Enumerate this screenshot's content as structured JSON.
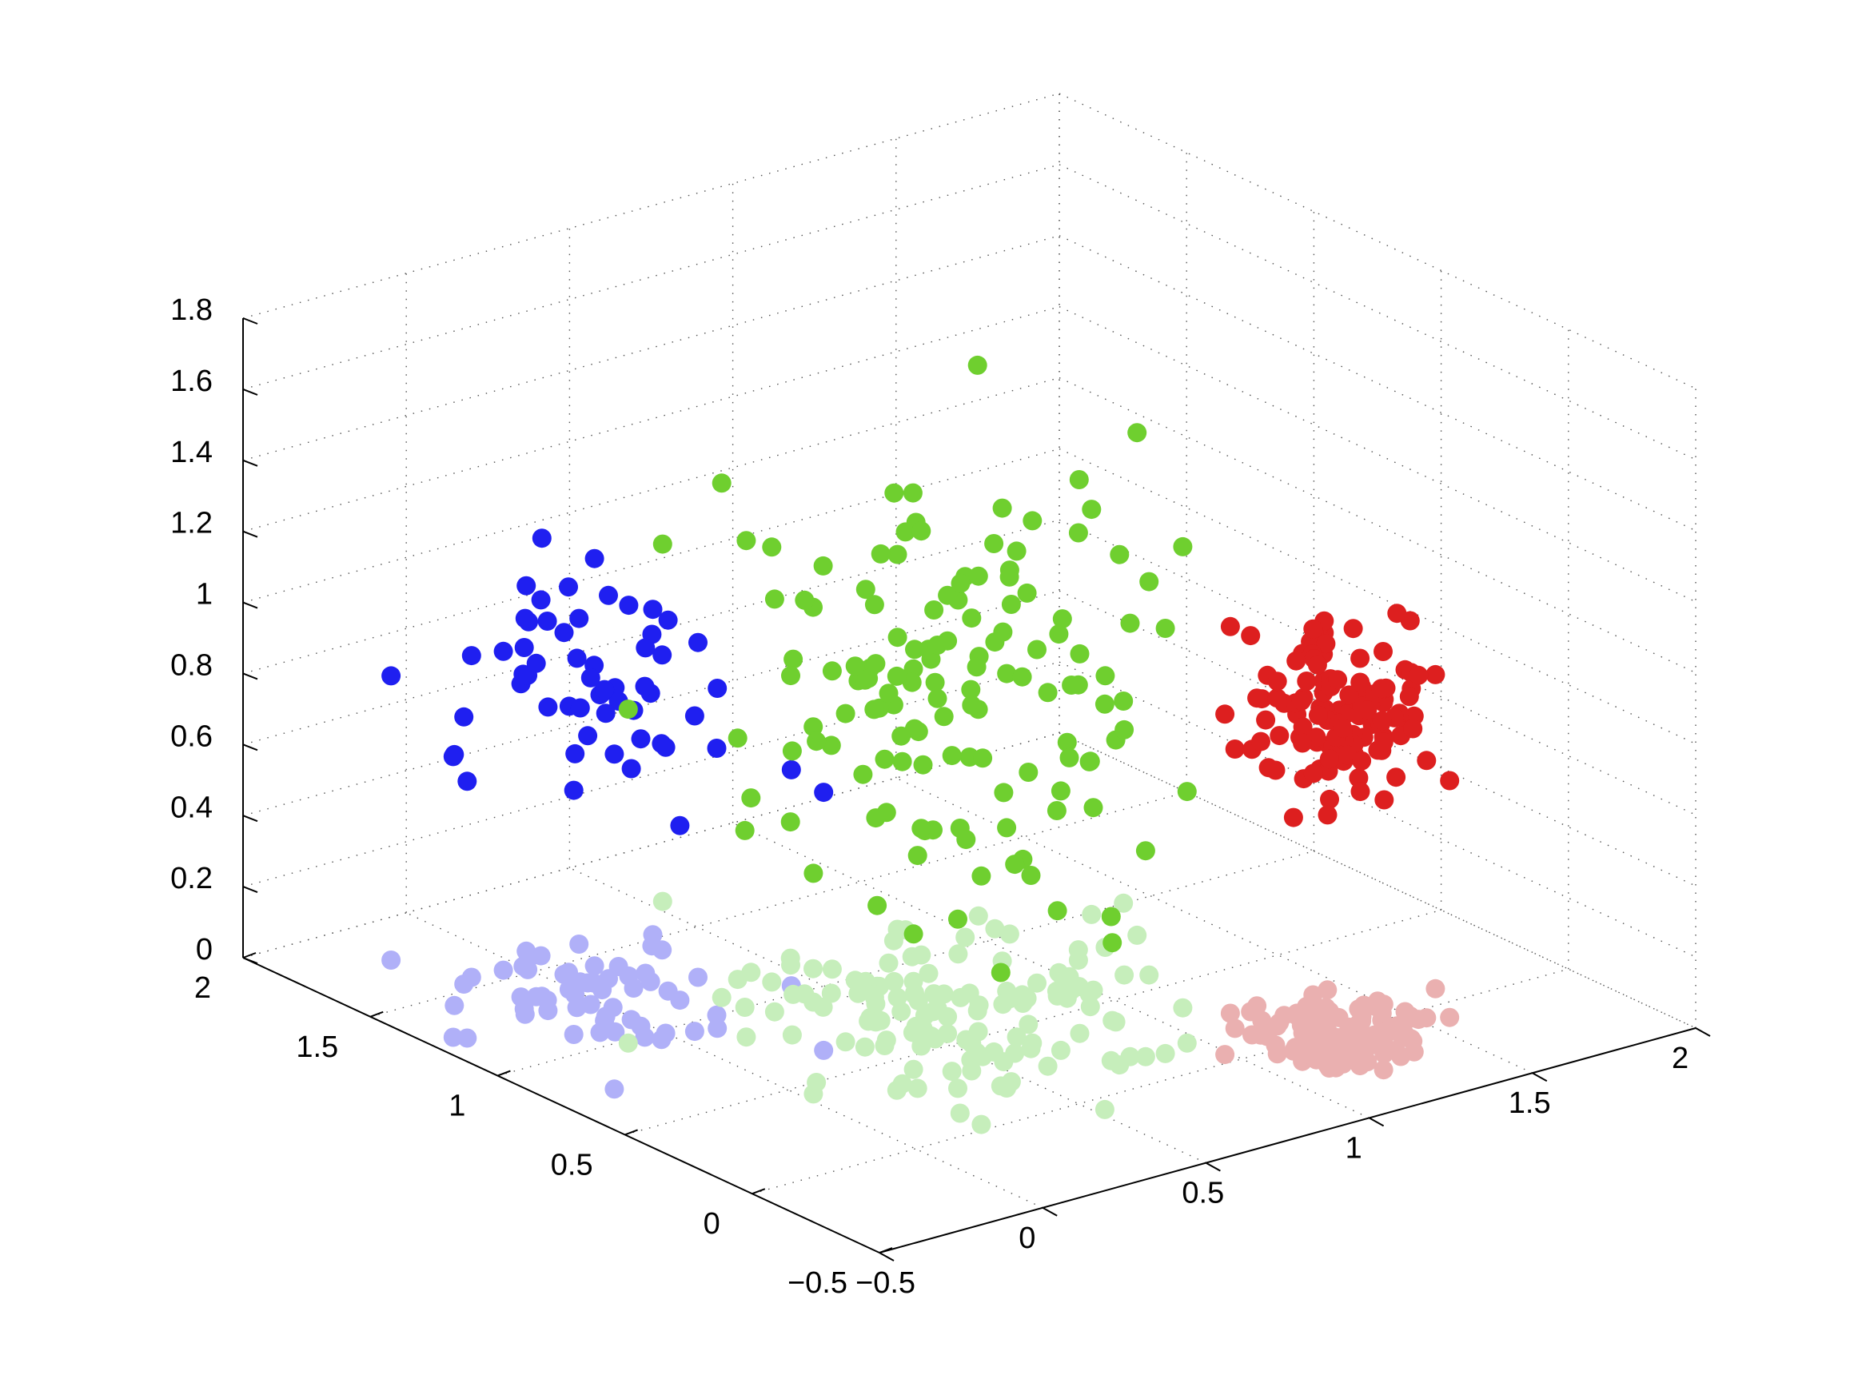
{
  "chart_data": {
    "type": "scatter3d",
    "title": "",
    "xlabel": "",
    "ylabel": "",
    "zlabel": "",
    "xlim": [
      -0.5,
      2
    ],
    "ylim": [
      -0.5,
      2
    ],
    "zlim": [
      0,
      1.8
    ],
    "x_ticks": [
      -0.5,
      0,
      0.5,
      1,
      1.5,
      2
    ],
    "x_tick_labels": [
      "−0.5",
      "0",
      "0.5",
      "1",
      "1.5",
      "2"
    ],
    "y_ticks": [
      -0.5,
      0,
      0.5,
      1,
      1.5,
      2
    ],
    "y_tick_labels": [
      "−0.5",
      "0",
      "0.5",
      "1",
      "1.5",
      "2"
    ],
    "z_ticks": [
      0,
      0.2,
      0.4,
      0.6,
      0.8,
      1,
      1.2,
      1.4,
      1.6,
      1.8
    ],
    "z_tick_labels": [
      "0",
      "0.2",
      "0.4",
      "0.6",
      "0.8",
      "1",
      "1.2",
      "1.4",
      "1.6",
      "1.8"
    ],
    "grid": true,
    "legend": "none",
    "series": [
      {
        "color": "#1f1ff0",
        "cluster": {
          "x_center": 0.0,
          "y_center": 1.3,
          "z_center": 0.9,
          "spread": [
            0.18,
            0.2,
            0.14
          ],
          "n": 60
        }
      },
      {
        "color": "#6fcf2f",
        "cluster": {
          "x_center": 0.65,
          "y_center": 0.65,
          "z_center": 0.9,
          "spread": [
            0.3,
            0.3,
            0.32
          ],
          "n": 140
        }
      },
      {
        "color": "#dd1f1f",
        "cluster": {
          "x_center": 1.3,
          "y_center": 0.0,
          "z_center": 0.9,
          "spread": [
            0.12,
            0.12,
            0.12
          ],
          "n": 120
        }
      },
      {
        "color": "#b0b0f8",
        "cluster": {
          "x_center": 0.0,
          "y_center": 1.3,
          "z_center": 0.0,
          "spread": [
            0.18,
            0.2,
            0.0
          ],
          "n": 60
        }
      },
      {
        "color": "#c6eebb",
        "cluster": {
          "x_center": 0.65,
          "y_center": 0.65,
          "z_center": 0.0,
          "spread": [
            0.3,
            0.3,
            0.0
          ],
          "n": 140
        }
      },
      {
        "color": "#eab0b0",
        "cluster": {
          "x_center": 1.3,
          "y_center": 0.0,
          "z_center": 0.0,
          "spread": [
            0.12,
            0.12,
            0.0
          ],
          "n": 120
        }
      }
    ]
  }
}
